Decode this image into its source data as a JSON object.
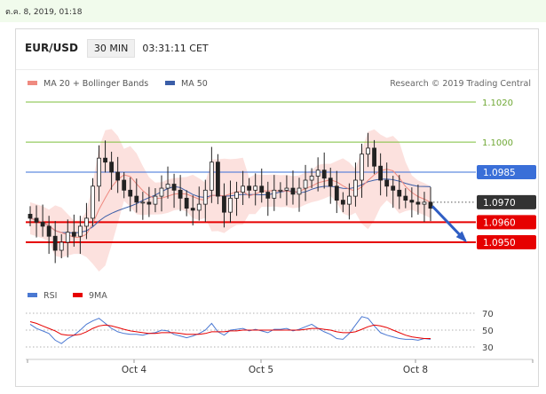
{
  "date_text": "ต.ค. 8, 2019, 01:18",
  "header": {
    "symbol": "EUR/USD",
    "timeframe": "30 MIN",
    "time": "03:31:11 CET"
  },
  "legend": {
    "ma20_bb": "MA 20 + Bollinger Bands",
    "ma50": "MA 50",
    "credit": "Research © 2019 Trading Central",
    "rsi": "RSI",
    "ma9": "9MA"
  },
  "colors": {
    "green_level": "#7cbf3b",
    "blue_level": "#3a6fd8",
    "red_level": "#e60000",
    "current_price": "#333333",
    "bollinger": "#f9c8c3",
    "ma50": "#3b5ea8",
    "ma20": "#ef8a80",
    "rsi": "#4a78d2",
    "arrow": "#2f5ec4"
  },
  "chart_data": [
    {
      "type": "candlestick",
      "title": "EUR/USD 30 MIN",
      "ylim": [
        1.094,
        1.103
      ],
      "xticks": [
        "Oct 4",
        "Oct 5",
        "Oct 8"
      ],
      "levels": [
        {
          "label": "1.1020",
          "value": 1.102,
          "style": "green-line"
        },
        {
          "label": "1.1000",
          "value": 1.1,
          "style": "green-line"
        },
        {
          "label": "1.0985",
          "value": 1.0985,
          "style": "blue-badge"
        },
        {
          "label": "1.0970",
          "value": 1.097,
          "style": "current-price-badge"
        },
        {
          "label": "1.0960",
          "value": 1.096,
          "style": "red-badge"
        },
        {
          "label": "1.0950",
          "value": 1.095,
          "style": "red-badge"
        }
      ],
      "forecast": {
        "from": 1.0968,
        "to": 1.095,
        "direction": "down"
      },
      "close_path": [
        1.0962,
        1.096,
        1.0958,
        1.0953,
        1.0946,
        1.095,
        1.0955,
        1.0953,
        1.0958,
        1.0962,
        1.0978,
        1.0992,
        1.099,
        1.0985,
        1.0981,
        1.0976,
        1.0973,
        1.097,
        1.097,
        1.0969,
        1.0973,
        1.0977,
        1.0979,
        1.0976,
        1.0972,
        1.0967,
        1.0966,
        1.0969,
        1.0976,
        1.099,
        1.0973,
        1.0965,
        1.0972,
        1.0975,
        1.0978,
        1.0976,
        1.0978,
        1.0975,
        1.0972,
        1.0976,
        1.0976,
        1.0977,
        1.0974,
        1.0977,
        1.0981,
        1.0983,
        1.0986,
        1.0982,
        1.0978,
        1.0971,
        1.0969,
        1.0973,
        1.0981,
        1.0994,
        1.0997,
        1.0988,
        1.0981,
        1.0978,
        1.0976,
        1.0973,
        1.0971,
        1.097,
        1.0969,
        1.097,
        1.0967
      ]
    },
    {
      "type": "line",
      "title": "RSI",
      "ylim": [
        20,
        80
      ],
      "yticks": [
        70,
        50,
        30
      ],
      "series": [
        {
          "name": "RSI",
          "values": [
            57,
            52,
            49,
            46,
            38,
            34,
            40,
            44,
            50,
            57,
            61,
            64,
            58,
            52,
            48,
            46,
            45,
            45,
            44,
            46,
            47,
            50,
            49,
            45,
            43,
            41,
            43,
            46,
            50,
            58,
            48,
            44,
            50,
            51,
            52,
            49,
            51,
            49,
            47,
            51,
            51,
            52,
            49,
            51,
            54,
            57,
            52,
            48,
            45,
            40,
            39,
            46,
            56,
            66,
            64,
            55,
            47,
            44,
            42,
            40,
            39,
            39,
            38,
            40,
            39
          ]
        },
        {
          "name": "9MA",
          "values": [
            60,
            58,
            55,
            52,
            49,
            45,
            44,
            44,
            45,
            48,
            52,
            55,
            56,
            55,
            53,
            51,
            49,
            48,
            47,
            46,
            46,
            47,
            47,
            47,
            46,
            45,
            45,
            45,
            46,
            48,
            48,
            48,
            49,
            49,
            50,
            50,
            50,
            50,
            50,
            50,
            50,
            50,
            50,
            50,
            51,
            52,
            52,
            51,
            50,
            48,
            47,
            47,
            48,
            51,
            54,
            56,
            55,
            53,
            50,
            47,
            44,
            42,
            41,
            40,
            40
          ]
        }
      ]
    }
  ]
}
